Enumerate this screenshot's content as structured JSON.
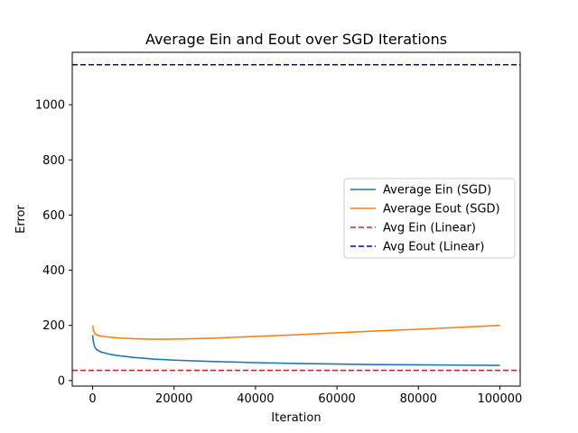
{
  "chart_data": {
    "type": "line",
    "title": "Average Ein and Eout over SGD Iterations",
    "xlabel": "Iteration",
    "ylabel": "Error",
    "xlim": [
      -5000,
      105000
    ],
    "ylim": [
      -20,
      1190
    ],
    "x_ticks": [
      0,
      20000,
      40000,
      60000,
      80000,
      100000
    ],
    "x_tick_labels": [
      "0",
      "20000",
      "40000",
      "60000",
      "80000",
      "100000"
    ],
    "y_ticks": [
      0,
      200,
      400,
      600,
      800,
      1000
    ],
    "y_tick_labels": [
      "0",
      "200",
      "400",
      "600",
      "800",
      "1000"
    ],
    "grid": false,
    "legend_position": "center-right",
    "series": [
      {
        "name": "Average Ein (SGD)",
        "color": "#1f77b4",
        "style": "solid",
        "x": [
          0,
          200,
          500,
          1000,
          2000,
          4000,
          6000,
          10000,
          15000,
          20000,
          30000,
          40000,
          50000,
          60000,
          70000,
          80000,
          90000,
          100000
        ],
        "y": [
          165,
          140,
          122,
          112,
          104,
          96,
          91,
          84,
          78,
          74,
          69,
          65,
          62,
          60,
          58,
          57,
          56,
          55
        ]
      },
      {
        "name": "Average Eout (SGD)",
        "color": "#ff7f0e",
        "style": "solid",
        "x": [
          0,
          300,
          700,
          1500,
          3000,
          6000,
          10000,
          15000,
          18000,
          25000,
          30000,
          40000,
          50000,
          60000,
          70000,
          80000,
          90000,
          100000
        ],
        "y": [
          200,
          178,
          168,
          163,
          159,
          155,
          152,
          150,
          150,
          152,
          154,
          160,
          166,
          173,
          180,
          186,
          193,
          200
        ]
      },
      {
        "name": "Avg Ein (Linear)",
        "color": "#d62728",
        "style": "dashed",
        "hline": 37
      },
      {
        "name": "Avg Eout (Linear)",
        "color": "#0000cc",
        "style": "dashed",
        "hline": 1145
      }
    ]
  }
}
